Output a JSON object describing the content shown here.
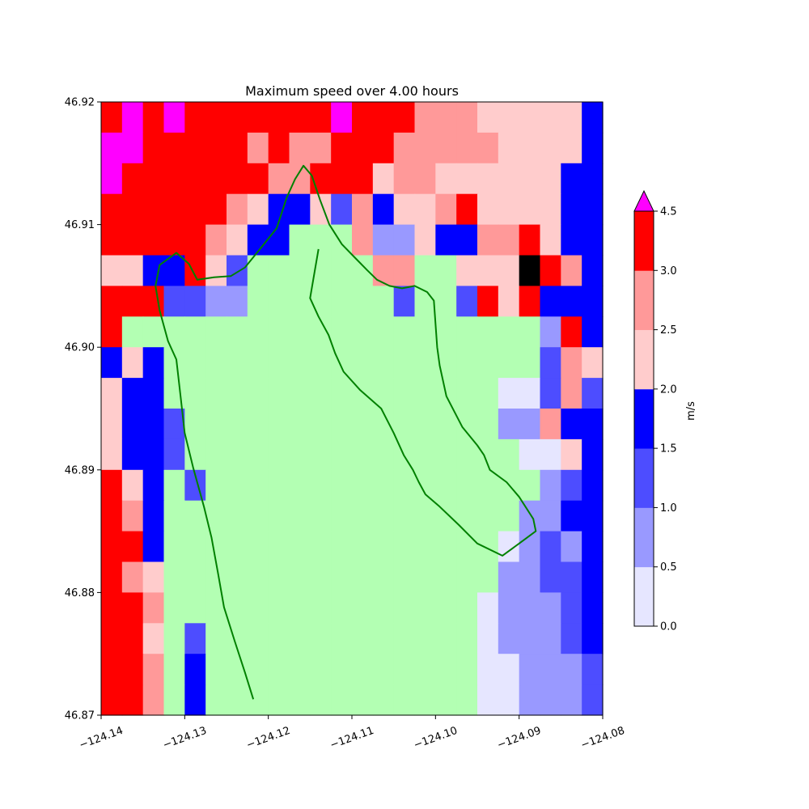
{
  "chart_data": {
    "type": "heatmap",
    "title": "Maximum speed over 4.00 hours",
    "xlim": [
      -124.14,
      -124.08
    ],
    "ylim": [
      46.87,
      46.92
    ],
    "x_ticks": [
      -124.14,
      -124.13,
      -124.12,
      -124.11,
      -124.1,
      -124.09,
      -124.08
    ],
    "x_tick_labels": [
      "−124.14",
      "−124.13",
      "−124.12",
      "−124.11",
      "−124.10",
      "−124.09",
      "−124.08"
    ],
    "y_ticks": [
      46.87,
      46.88,
      46.89,
      46.9,
      46.91,
      46.92
    ],
    "y_tick_labels": [
      "46.87",
      "46.88",
      "46.89",
      "46.90",
      "46.91",
      "46.92"
    ],
    "grid": false,
    "land_color": "#b3ffb3",
    "shoreline_color": "#008000",
    "colorbar": {
      "label": "m/s",
      "bounds": [
        0,
        0.5,
        1.0,
        1.5,
        2.0,
        2.5,
        3.0,
        4.5
      ],
      "tick_labels": [
        "0.0",
        "0.5",
        "1.0",
        "1.5",
        "2.0",
        "2.5",
        "3.0",
        "4.5"
      ],
      "colors": [
        "#e6e6ff",
        "#9999ff",
        "#4d4dff",
        "#0000ff",
        "#ffcccc",
        "#ff9999",
        "#ff0000"
      ],
      "over_color": "#ff00ff",
      "extend": "max"
    },
    "grid_columns": 24,
    "grid_rows": 20,
    "legend_codes": {
      "L": "land",
      "0": "0.0-0.5",
      "1": "0.5-1.0",
      "2": "1.0-1.5",
      "3": "1.5-2.0",
      "4": "2.0-2.5",
      "5": "2.5-3.0",
      "6": "3.0-4.5",
      "7": ">4.5"
    },
    "cells_north_to_south": [
      "676766666667666555444443",
      "776666656556665555544443",
      "766666665566645544444433",
      "666666543342534456444433",
      "666665433LLL511433556433",
      "4433642LLLLLL55LL4449653",
      "6662211LLLLLLL2LL2646333",
      "6LLLLLLLLLLLLLLLLLLLL163",
      "343LLLLLLLLLLLLLLLLLL254",
      "433LLLLLLLLLLLLLLLL00252",
      "4332LLLLLLLLLLLLLLL11533",
      "4332LLLLLLLLLLLLLLLL0043",
      "643L2LLLLLLLLLLLLLLLL123",
      "653LLLLLLLLLLLLLLLLL1133",
      "663LLLLLLLLLLLLLLLL01213",
      "654LLLLLLLLLLLLLLLL11223",
      "665LLLLLLLLLLLLLLL011123",
      "664L2LLLLLLLLLLLLL011123",
      "665L3LLLLLLLLLLLLL001112",
      "665L3LLLLLLLLLLLLL001112"
    ],
    "shoreline_lon_lat": [
      [
        -124.1218,
        46.8713
      ],
      [
        -124.1228,
        46.8735
      ],
      [
        -124.124,
        46.876
      ],
      [
        -124.1253,
        46.8788
      ],
      [
        -124.126,
        46.8815
      ],
      [
        -124.1268,
        46.8845
      ],
      [
        -124.1277,
        46.887
      ],
      [
        -124.129,
        46.8902
      ],
      [
        -124.13,
        46.893
      ],
      [
        -124.1305,
        46.896
      ],
      [
        -124.131,
        46.899
      ],
      [
        -124.132,
        46.9005
      ],
      [
        -124.133,
        46.903
      ],
      [
        -124.1335,
        46.905
      ],
      [
        -124.133,
        46.9067
      ],
      [
        -124.131,
        46.9077
      ],
      [
        -124.1295,
        46.9068
      ],
      [
        -124.1285,
        46.9055
      ],
      [
        -124.1265,
        46.9057
      ],
      [
        -124.1245,
        46.9058
      ],
      [
        -124.1228,
        46.9065
      ],
      [
        -124.121,
        46.908
      ],
      [
        -124.119,
        46.9097
      ],
      [
        -124.1178,
        46.9122
      ],
      [
        -124.1168,
        46.9137
      ],
      [
        -124.1158,
        46.9148
      ],
      [
        -124.1148,
        46.914
      ],
      [
        -124.1138,
        46.912
      ],
      [
        -124.1127,
        46.91
      ],
      [
        -124.1112,
        46.9084
      ],
      [
        -124.1095,
        46.9072
      ],
      [
        -124.1082,
        46.9063
      ],
      [
        -124.107,
        46.9055
      ],
      [
        -124.1055,
        46.905
      ],
      [
        -124.104,
        46.9048
      ],
      [
        -124.1025,
        46.905
      ],
      [
        -124.101,
        46.9045
      ],
      [
        -124.1002,
        46.9038
      ],
      [
        -124.0998,
        46.9
      ],
      [
        -124.0995,
        46.8985
      ],
      [
        -124.0987,
        46.896
      ],
      [
        -124.0968,
        46.8935
      ],
      [
        -124.095,
        46.892
      ],
      [
        -124.0942,
        46.8912
      ],
      [
        -124.0935,
        46.89
      ],
      [
        -124.0915,
        46.889
      ],
      [
        -124.09,
        46.8878
      ],
      [
        -124.0883,
        46.886
      ],
      [
        -124.088,
        46.885
      ],
      [
        -124.09,
        46.884
      ],
      [
        -124.092,
        46.883
      ],
      [
        -124.095,
        46.884
      ],
      [
        -124.0972,
        46.8855
      ],
      [
        -124.0995,
        46.887
      ],
      [
        -124.1012,
        46.888
      ],
      [
        -124.102,
        46.889
      ],
      [
        -124.1027,
        46.89
      ],
      [
        -124.1038,
        46.8912
      ],
      [
        -124.105,
        46.893
      ],
      [
        -124.1065,
        46.895
      ],
      [
        -124.109,
        46.8965
      ],
      [
        -124.111,
        46.898
      ],
      [
        -124.112,
        46.8995
      ],
      [
        -124.1128,
        46.901
      ],
      [
        -124.114,
        46.9025
      ],
      [
        -124.115,
        46.904
      ],
      [
        -124.1145,
        46.906
      ],
      [
        -124.114,
        46.908
      ]
    ]
  }
}
